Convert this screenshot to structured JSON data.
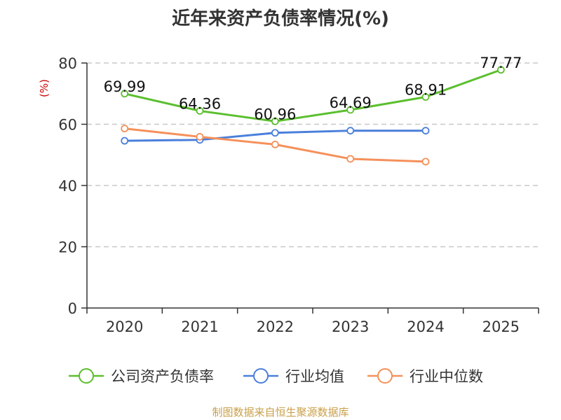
{
  "chart_data": {
    "type": "line",
    "title": "近年来资产负债率情况(%)",
    "ylabel": "(%)",
    "xlabel": "",
    "categories": [
      "2020",
      "2021",
      "2022",
      "2023",
      "2024",
      "2025"
    ],
    "ylim": [
      0,
      80
    ],
    "yticks": [
      0,
      20,
      40,
      60,
      80
    ],
    "grid": true,
    "legend_position": "bottom",
    "series": [
      {
        "name": "公司资产负债率",
        "color": "#5bbf2e",
        "values": [
          69.99,
          64.36,
          60.96,
          64.69,
          68.91,
          77.77
        ],
        "labels": [
          "69.99",
          "64.36",
          "60.96",
          "64.69",
          "68.91",
          "77.77"
        ]
      },
      {
        "name": "行业均值",
        "color": "#4a7fdb",
        "values": [
          54.6,
          54.9,
          57.2,
          57.9,
          57.9,
          null
        ]
      },
      {
        "name": "行业中位数",
        "color": "#f5905a",
        "values": [
          58.6,
          55.9,
          53.4,
          48.7,
          47.8,
          null
        ]
      }
    ]
  },
  "source": "制图数据来自恒生聚源数据库"
}
